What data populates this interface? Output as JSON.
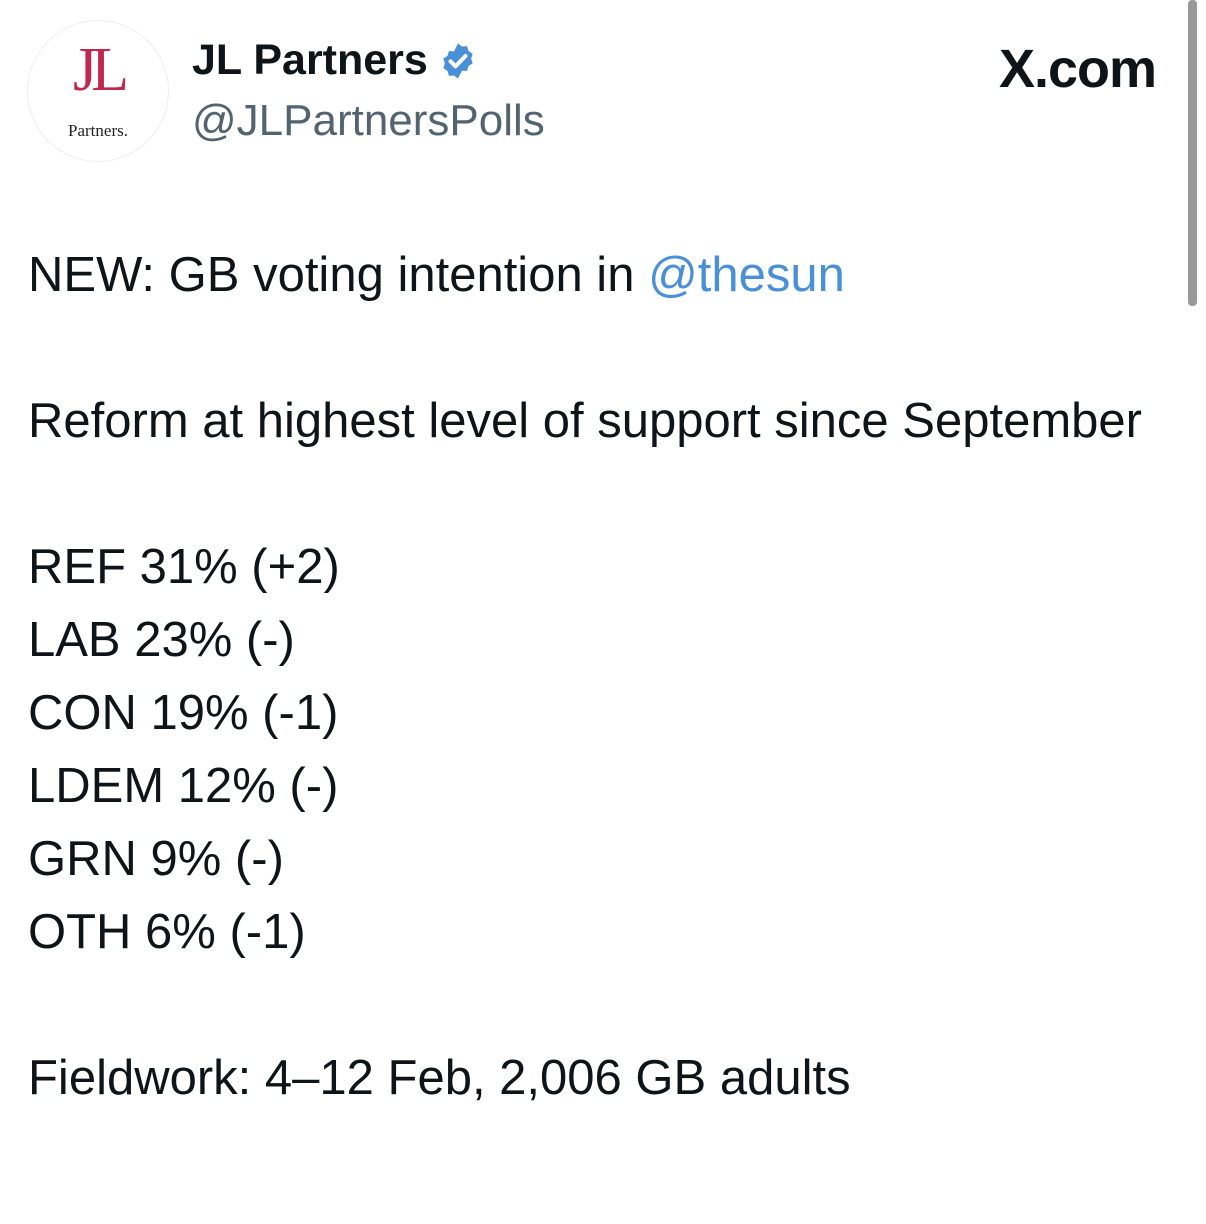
{
  "author": {
    "name": "JL Partners",
    "handle": "@JLPartnersPolls",
    "verified": true,
    "avatar_logo_text": "JL Partners",
    "avatar_color": "#c0284f"
  },
  "source": "X.com",
  "tweet": {
    "line1_prefix": "NEW: GB voting intention in ",
    "mention": "@thesun",
    "headline": "Reform at highest level of support since September",
    "results": [
      "REF 31% (+2)",
      "LAB 23% (-)",
      "CON 19% (-1)",
      "LDEM 12% (-)",
      "GRN 9% (-)",
      "OTH 6% (-1)"
    ],
    "fieldwork": "Fieldwork: 4–12 Feb, 2,006 GB adults"
  },
  "colors": {
    "mention": "#4a90d9",
    "verified": "#4a90d9"
  }
}
